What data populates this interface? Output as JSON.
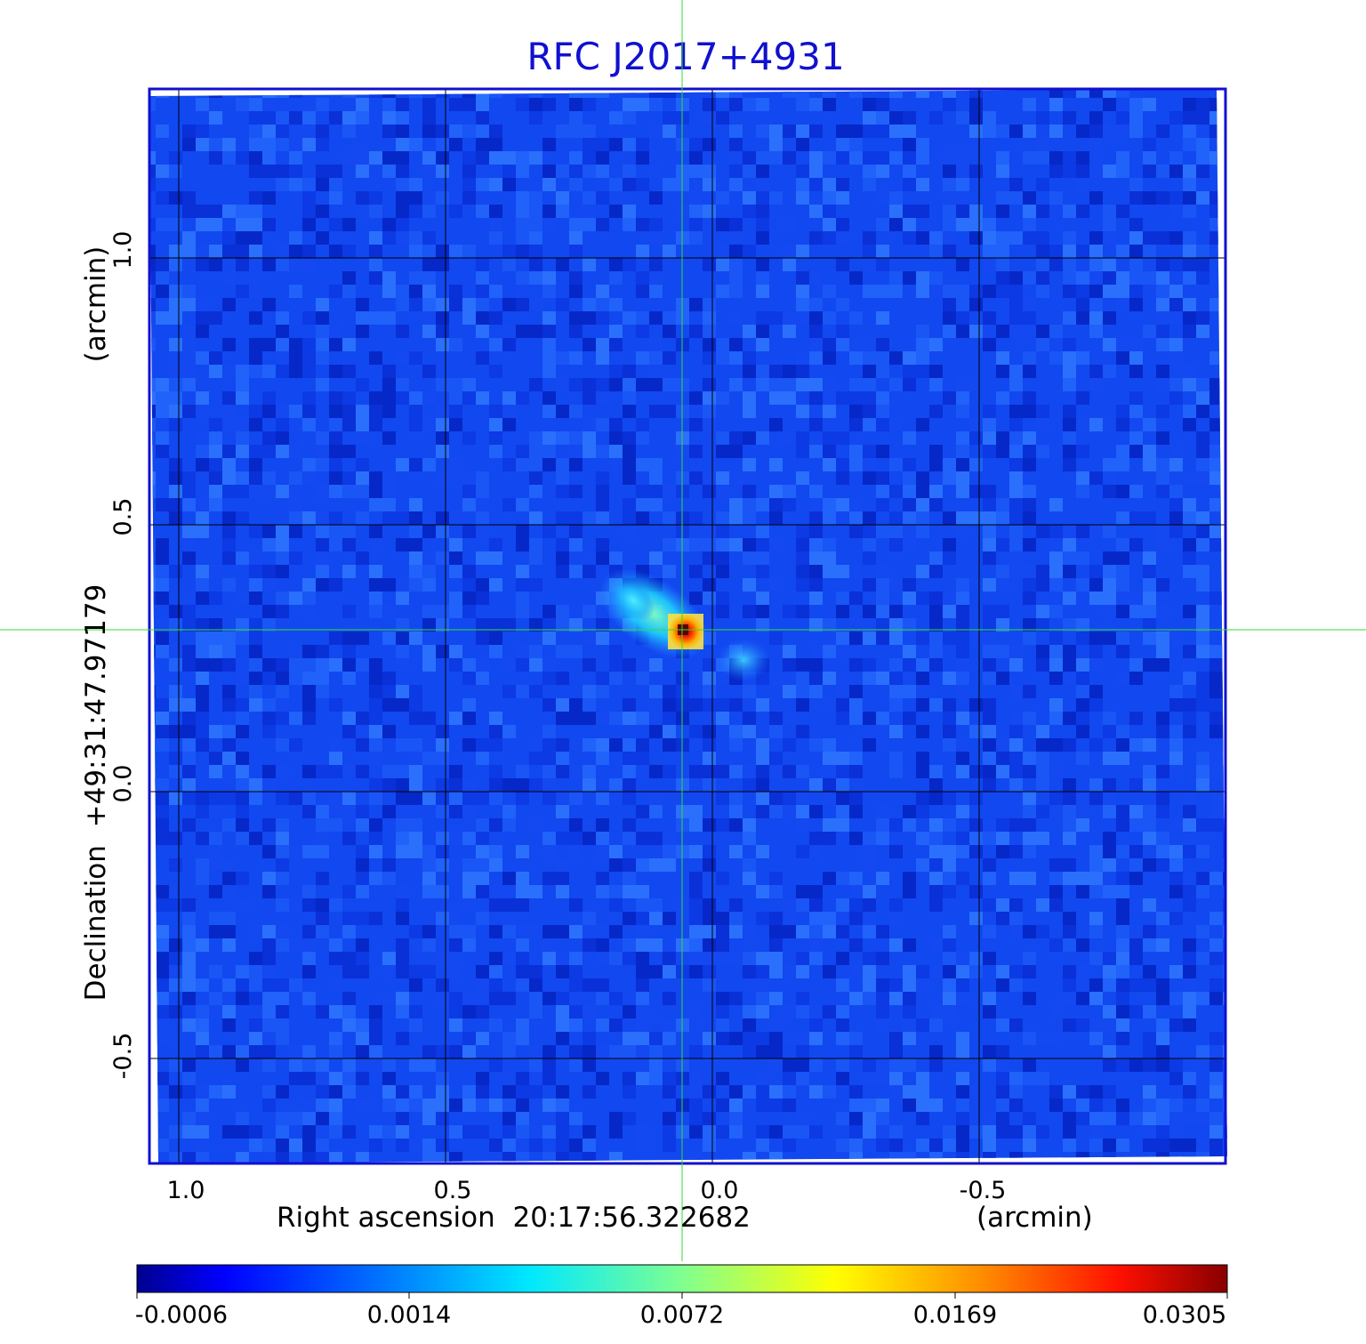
{
  "figure": {
    "title": "RFC J2017+4931",
    "x_axis": {
      "label": "Right ascension  20:17:56.322682",
      "unit_label": "(arcmin)",
      "ticks": [
        "1.0",
        "0.5",
        "0.0",
        "-0.5"
      ],
      "tick_values": [
        1.0,
        0.5,
        0.0,
        -0.5
      ]
    },
    "y_axis": {
      "label": "Declination  +49:31:47.97179",
      "unit_label": "(arcmin)",
      "ticks": [
        "1.0",
        "0.5",
        "0.0",
        "-0.5"
      ],
      "tick_values": [
        1.0,
        0.5,
        0.0,
        -0.5
      ]
    },
    "colorbar": {
      "ticks": [
        "-0.0006",
        "0.0014",
        "0.0072",
        "0.0169",
        "0.0305"
      ],
      "colors": [
        "#00008f",
        "#0000ff",
        "#0080ff",
        "#00ffff",
        "#80ff80",
        "#ffff00",
        "#ff8000",
        "#ff0000",
        "#800000"
      ]
    },
    "colors": {
      "title": "#1010d0",
      "frame": "#1010d0",
      "crosshair": "#33dd33",
      "background_map": "#1248f0",
      "grid": "#000000"
    },
    "source": {
      "ra_offset_arcmin": 0.06,
      "dec_offset_arcmin": 0.3,
      "peak_value": 0.0305
    }
  }
}
